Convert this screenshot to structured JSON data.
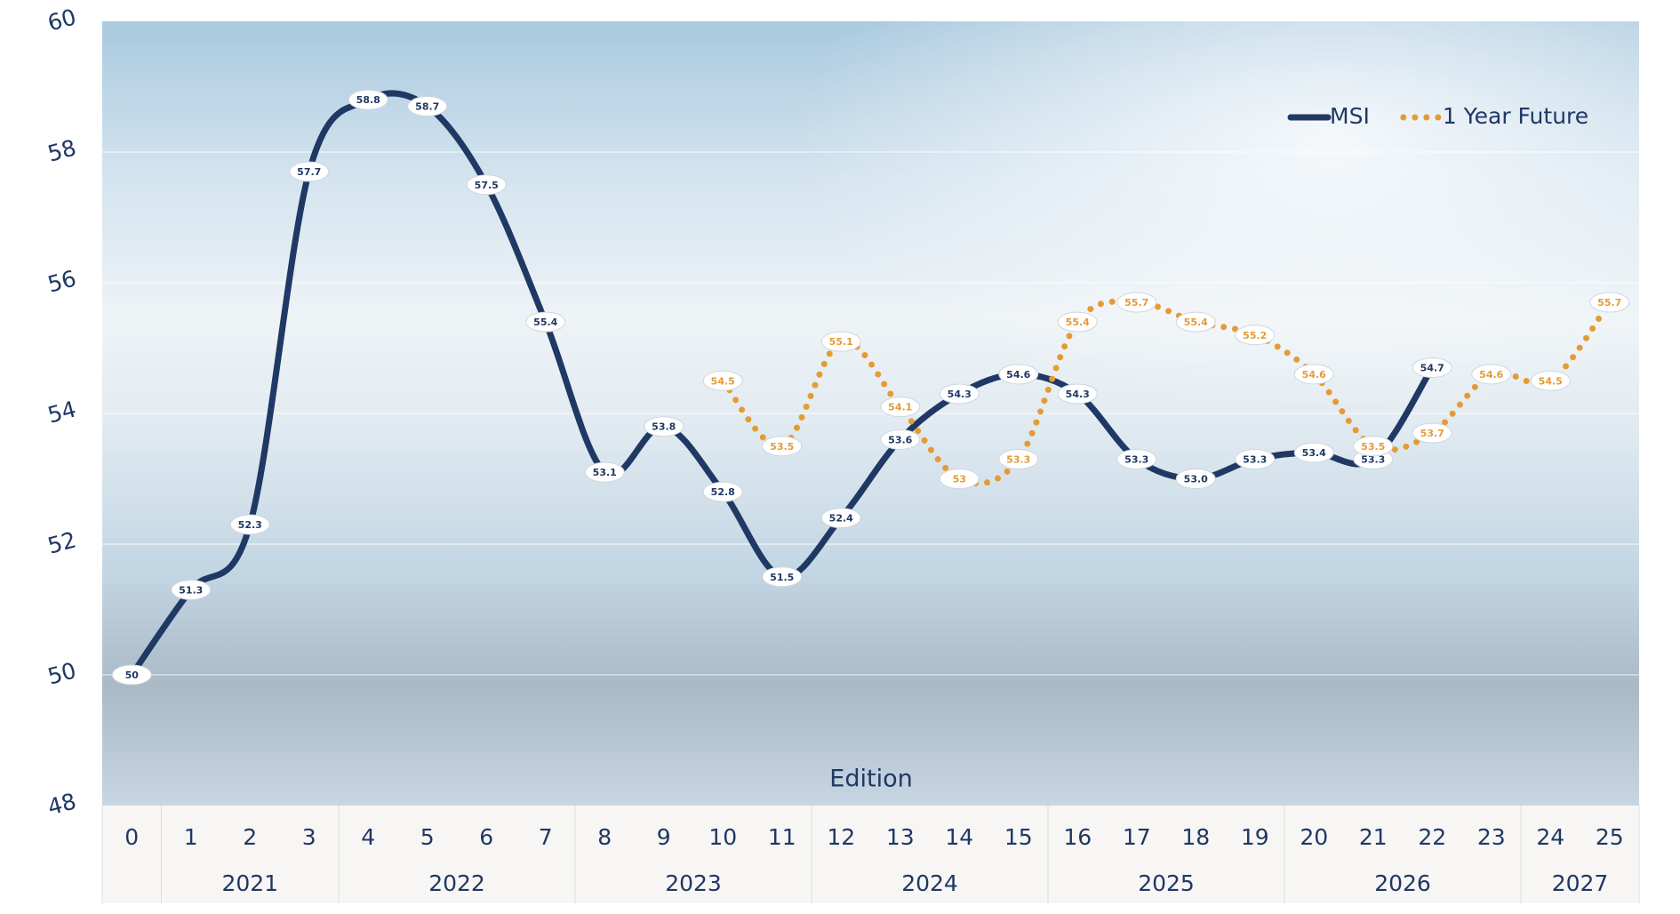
{
  "chart_data": {
    "type": "line",
    "x_label": "Edition",
    "categories": [
      "0",
      "1",
      "2",
      "3",
      "4",
      "5",
      "6",
      "7",
      "8",
      "9",
      "10",
      "11",
      "12",
      "13",
      "14",
      "15",
      "16",
      "17",
      "18",
      "19",
      "20",
      "21",
      "22",
      "23",
      "24",
      "25"
    ],
    "year_groups": [
      {
        "label": "2021",
        "first": 1,
        "last": 3
      },
      {
        "label": "2022",
        "first": 4,
        "last": 7
      },
      {
        "label": "2023",
        "first": 8,
        "last": 11
      },
      {
        "label": "2024",
        "first": 12,
        "last": 15
      },
      {
        "label": "2025",
        "first": 16,
        "last": 19
      },
      {
        "label": "2026",
        "first": 20,
        "last": 23
      },
      {
        "label": "2027",
        "first": 24,
        "last": 25
      }
    ],
    "series": [
      {
        "name": "MSI",
        "color": "#1f3864",
        "style": "solid",
        "values": [
          50,
          51.3,
          52.3,
          57.7,
          58.8,
          58.7,
          57.5,
          55.4,
          53.1,
          53.8,
          52.8,
          51.5,
          52.4,
          53.6,
          54.3,
          54.6,
          54.3,
          53.3,
          53.0,
          53.3,
          53.4,
          53.3,
          54.7,
          null,
          null,
          null
        ],
        "value_labels": [
          "50",
          "51.3",
          "52.3",
          "57.7",
          "58.8",
          "58.7",
          "57.5",
          "55.4",
          "53.1",
          "53.8",
          "52.8",
          "51.5",
          "52.4",
          "53.6",
          "54.3",
          "54.6",
          "54.3",
          "53.3",
          "53.0",
          "53.3",
          "53.4",
          "53.3",
          "54.7",
          null,
          null,
          null
        ]
      },
      {
        "name": "1 Year Future",
        "color": "#e59b35",
        "style": "dotted",
        "values": [
          null,
          null,
          null,
          null,
          null,
          null,
          null,
          null,
          null,
          null,
          54.5,
          53.5,
          55.1,
          54.1,
          53,
          53.3,
          55.4,
          55.7,
          55.4,
          55.2,
          54.6,
          53.5,
          53.7,
          54.6,
          54.5,
          55.7
        ]
      }
    ],
    "ylim": [
      48,
      60
    ],
    "yticks": [
      48,
      50,
      52,
      54,
      56,
      58,
      60
    ],
    "grid": true,
    "legend": "upper right"
  }
}
